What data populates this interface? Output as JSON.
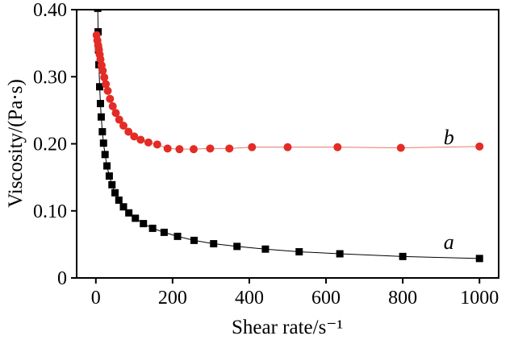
{
  "figure": {
    "background": "#ffffff",
    "frame_color": "#000000"
  },
  "chart_data": {
    "type": "scatter",
    "title": "",
    "xlabel": "Shear rate/s⁻¹",
    "ylabel": "Viscosity/(Pa·s)",
    "xlim": [
      -50,
      1050
    ],
    "ylim": [
      0,
      0.4
    ],
    "xticks": [
      0,
      200,
      400,
      600,
      800,
      1000
    ],
    "xtick_labels": [
      "0",
      "200",
      "400",
      "600",
      "800",
      "1000"
    ],
    "yticks": [
      0,
      0.1,
      0.2,
      0.3,
      0.4
    ],
    "ytick_labels": [
      "0",
      "0.10",
      "0.20",
      "0.30",
      "0.40"
    ],
    "grid": false,
    "legend_position": "none",
    "series": [
      {
        "name": "a",
        "marker": "square",
        "marker_size": 9,
        "color": "#000000",
        "line_color": "#000000",
        "line_width": 1,
        "x": [
          4,
          5,
          6,
          7,
          8,
          10,
          12,
          14,
          17,
          20,
          24,
          29,
          35,
          42,
          50,
          60,
          72,
          86,
          103,
          124,
          148,
          178,
          213,
          256,
          307,
          368,
          442,
          530,
          636,
          800,
          1000
        ],
        "y": [
          0.45,
          0.402,
          0.367,
          0.34,
          0.318,
          0.285,
          0.26,
          0.24,
          0.218,
          0.201,
          0.184,
          0.167,
          0.152,
          0.139,
          0.127,
          0.116,
          0.106,
          0.097,
          0.089,
          0.081,
          0.074,
          0.068,
          0.062,
          0.056,
          0.051,
          0.047,
          0.043,
          0.039,
          0.036,
          0.032,
          0.029
        ]
      },
      {
        "name": "b",
        "marker": "circle",
        "marker_size": 10,
        "color": "#e32c25",
        "line_color": "#e8766b",
        "line_width": 1,
        "x": [
          2,
          4,
          6,
          8,
          10,
          12,
          15,
          18,
          22,
          26,
          31,
          37,
          44,
          52,
          61,
          72,
          85,
          100,
          117,
          137,
          160,
          187,
          218,
          255,
          298,
          348,
          407,
          500,
          630,
          795,
          1000
        ],
        "y": [
          0.362,
          0.354,
          0.347,
          0.34,
          0.333,
          0.326,
          0.317,
          0.309,
          0.299,
          0.289,
          0.279,
          0.267,
          0.256,
          0.246,
          0.236,
          0.227,
          0.218,
          0.211,
          0.206,
          0.202,
          0.199,
          0.193,
          0.192,
          0.192,
          0.193,
          0.193,
          0.195,
          0.195,
          0.195,
          0.194,
          0.196
        ]
      }
    ],
    "annotations": [
      {
        "text": "a",
        "x": 920,
        "y": 0.054
      },
      {
        "text": "b",
        "x": 920,
        "y": 0.21
      }
    ]
  }
}
